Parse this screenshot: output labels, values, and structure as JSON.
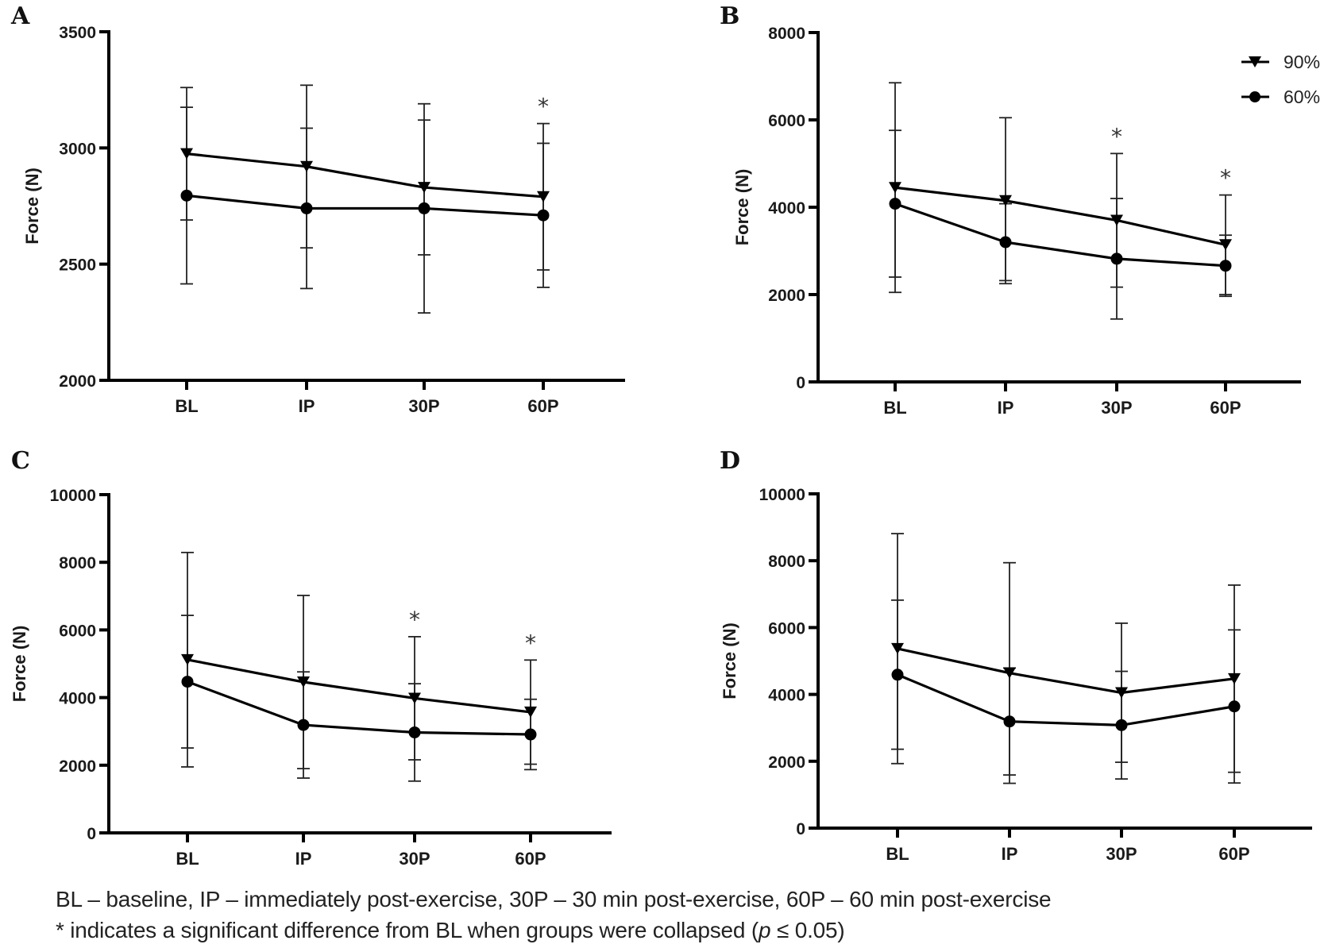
{
  "caption": {
    "line1": "BL – baseline, IP – immediately post-exercise, 30P – 30 min post-exercise, 60P – 60 min post-exercise",
    "line2_prefix": "* indicates a significant difference from BL when groups were collapsed (",
    "line2_italic": "p",
    "line2_suffix": " ≤ 0.05)"
  },
  "legend": {
    "position": "top-right of panel B",
    "entries": [
      {
        "name": "90%",
        "marker": "triangle-down"
      },
      {
        "name": "60%",
        "marker": "circle"
      }
    ]
  },
  "chart_data": [
    {
      "panel": "A",
      "type": "line",
      "ylabel": "Force (N)",
      "xlabel": "",
      "categories": [
        "BL",
        "IP",
        "30P",
        "60P"
      ],
      "ylim": [
        2000,
        3500
      ],
      "yticks": [
        2000,
        2500,
        3000,
        3500
      ],
      "error_bars": "SD",
      "significant": [
        false,
        false,
        false,
        true
      ],
      "series": [
        {
          "name": "90%",
          "marker": "triangle-down",
          "values": [
            2975,
            2920,
            2830,
            2790
          ],
          "err": [
            285,
            350,
            290,
            315
          ]
        },
        {
          "name": "60%",
          "marker": "circle",
          "values": [
            2795,
            2740,
            2740,
            2710
          ],
          "err": [
            380,
            345,
            450,
            310
          ]
        }
      ]
    },
    {
      "panel": "B",
      "type": "line",
      "ylabel": "Force (N)",
      "xlabel": "",
      "categories": [
        "BL",
        "IP",
        "30P",
        "60P"
      ],
      "ylim": [
        0,
        8000
      ],
      "yticks": [
        0,
        2000,
        4000,
        6000,
        8000
      ],
      "error_bars": "SD",
      "significant": [
        false,
        false,
        true,
        true
      ],
      "series": [
        {
          "name": "90%",
          "marker": "triangle-down",
          "values": [
            4450,
            4150,
            3700,
            3140
          ],
          "err": [
            2400,
            1900,
            1530,
            1140
          ]
        },
        {
          "name": "60%",
          "marker": "circle",
          "values": [
            4080,
            3200,
            2820,
            2660
          ],
          "err": [
            1680,
            880,
            1380,
            700
          ]
        }
      ]
    },
    {
      "panel": "C",
      "type": "line",
      "ylabel": "Force (N)",
      "xlabel": "",
      "categories": [
        "BL",
        "IP",
        "30P",
        "60P"
      ],
      "ylim": [
        0,
        10000
      ],
      "yticks": [
        0,
        2000,
        4000,
        6000,
        8000,
        10000
      ],
      "error_bars": "SD",
      "significant": [
        false,
        false,
        true,
        true
      ],
      "series": [
        {
          "name": "90%",
          "marker": "triangle-down",
          "values": [
            5120,
            4460,
            3980,
            3570
          ],
          "err": [
            3170,
            2560,
            1820,
            1540
          ]
        },
        {
          "name": "60%",
          "marker": "circle",
          "values": [
            4470,
            3190,
            2970,
            2910
          ],
          "err": [
            1960,
            1570,
            1440,
            1040
          ]
        }
      ]
    },
    {
      "panel": "D",
      "type": "line",
      "ylabel": "Force (N)",
      "xlabel": "",
      "categories": [
        "BL",
        "IP",
        "30P",
        "60P"
      ],
      "ylim": [
        0,
        10000
      ],
      "yticks": [
        0,
        2000,
        4000,
        6000,
        8000,
        10000
      ],
      "error_bars": "SD",
      "significant": [
        false,
        false,
        false,
        false
      ],
      "series": [
        {
          "name": "90%",
          "marker": "triangle-down",
          "values": [
            5370,
            4640,
            4050,
            4470
          ],
          "err": [
            3440,
            3300,
            2080,
            2800
          ]
        },
        {
          "name": "60%",
          "marker": "circle",
          "values": [
            4590,
            3190,
            3080,
            3640
          ],
          "err": [
            2230,
            1600,
            1610,
            2290
          ]
        }
      ]
    }
  ]
}
